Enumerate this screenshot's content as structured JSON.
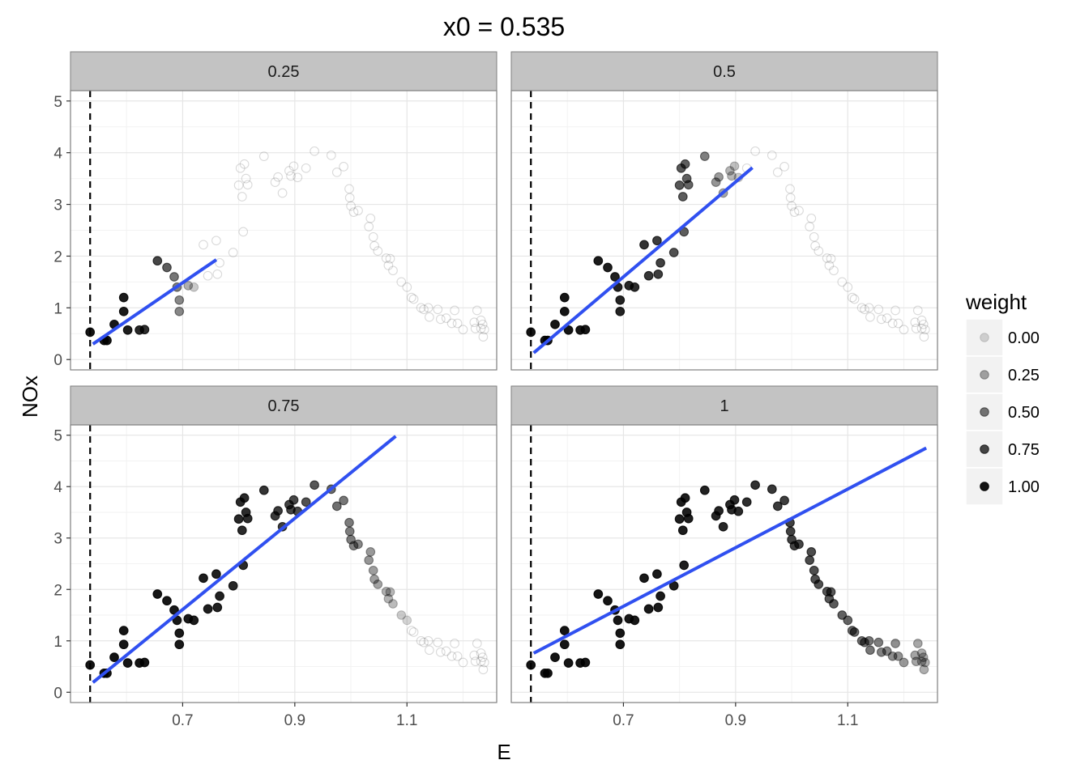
{
  "chart_data": {
    "type": "scatter",
    "title": "x0 =  0.535",
    "xlabel": "E",
    "ylabel": "NOx",
    "xlim": [
      0.5,
      1.26
    ],
    "ylim": [
      -0.2,
      5.2
    ],
    "x_ticks": [
      "0.7",
      "0.9",
      "1.1"
    ],
    "x_tick_values": [
      0.7,
      0.9,
      1.1
    ],
    "y_ticks": [
      "0",
      "1",
      "2",
      "3",
      "4",
      "5"
    ],
    "y_tick_values": [
      0,
      1,
      2,
      3,
      4,
      5
    ],
    "vline_x": 0.535,
    "grid": true,
    "legend": {
      "title": "weight",
      "position": "right",
      "entries": [
        "0.00",
        "0.25",
        "0.50",
        "0.75",
        "1.00"
      ],
      "alphas": [
        0.15,
        0.34,
        0.53,
        0.72,
        0.92
      ]
    },
    "point_color": "#000000",
    "fit_color": "#3050F0",
    "points": [
      [
        0.535,
        0.53
      ],
      [
        0.56,
        0.37
      ],
      [
        0.565,
        0.37
      ],
      [
        0.578,
        0.68
      ],
      [
        0.595,
        1.2
      ],
      [
        0.595,
        0.93
      ],
      [
        0.602,
        0.57
      ],
      [
        0.623,
        0.57
      ],
      [
        0.632,
        0.58
      ],
      [
        0.655,
        1.91
      ],
      [
        0.672,
        1.78
      ],
      [
        0.685,
        1.6
      ],
      [
        0.69,
        1.4
      ],
      [
        0.694,
        1.15
      ],
      [
        0.694,
        0.93
      ],
      [
        0.71,
        1.43
      ],
      [
        0.72,
        1.4
      ],
      [
        0.737,
        2.22
      ],
      [
        0.745,
        1.62
      ],
      [
        0.76,
        2.3
      ],
      [
        0.762,
        1.65
      ],
      [
        0.766,
        1.87
      ],
      [
        0.79,
        2.07
      ],
      [
        0.8,
        3.37
      ],
      [
        0.803,
        3.7
      ],
      [
        0.806,
        3.15
      ],
      [
        0.808,
        2.47
      ],
      [
        0.81,
        3.78
      ],
      [
        0.813,
        3.5
      ],
      [
        0.816,
        3.38
      ],
      [
        0.845,
        3.93
      ],
      [
        0.865,
        3.43
      ],
      [
        0.87,
        3.53
      ],
      [
        0.878,
        3.22
      ],
      [
        0.89,
        3.65
      ],
      [
        0.893,
        3.55
      ],
      [
        0.898,
        3.74
      ],
      [
        0.905,
        3.52
      ],
      [
        0.92,
        3.7
      ],
      [
        0.935,
        4.03
      ],
      [
        0.965,
        3.95
      ],
      [
        0.975,
        3.62
      ],
      [
        0.987,
        3.73
      ],
      [
        0.997,
        3.3
      ],
      [
        0.998,
        3.13
      ],
      [
        1.0,
        2.97
      ],
      [
        1.005,
        2.85
      ],
      [
        1.013,
        2.88
      ],
      [
        1.032,
        2.57
      ],
      [
        1.035,
        2.73
      ],
      [
        1.04,
        2.37
      ],
      [
        1.042,
        2.2
      ],
      [
        1.048,
        2.1
      ],
      [
        1.063,
        1.96
      ],
      [
        1.067,
        1.82
      ],
      [
        1.07,
        1.95
      ],
      [
        1.075,
        1.72
      ],
      [
        1.09,
        1.5
      ],
      [
        1.1,
        1.4
      ],
      [
        1.108,
        1.2
      ],
      [
        1.112,
        1.17
      ],
      [
        1.125,
        1.0
      ],
      [
        1.13,
        0.97
      ],
      [
        1.138,
        1.0
      ],
      [
        1.14,
        0.82
      ],
      [
        1.155,
        0.97
      ],
      [
        1.16,
        0.78
      ],
      [
        1.17,
        0.8
      ],
      [
        1.18,
        0.7
      ],
      [
        1.185,
        0.95
      ],
      [
        1.19,
        0.7
      ],
      [
        1.2,
        0.58
      ],
      [
        1.22,
        0.72
      ],
      [
        1.222,
        0.6
      ],
      [
        1.225,
        0.95
      ],
      [
        1.232,
        0.76
      ],
      [
        1.232,
        0.6
      ],
      [
        1.235,
        0.68
      ],
      [
        1.236,
        0.44
      ],
      [
        1.238,
        0.58
      ]
    ],
    "panels": [
      {
        "label": "0.25",
        "span": 0.25,
        "fit": {
          "x": [
            0.54,
            0.76
          ],
          "y": [
            0.3,
            1.93
          ]
        }
      },
      {
        "label": "0.5",
        "span": 0.5,
        "fit": {
          "x": [
            0.54,
            0.93
          ],
          "y": [
            0.13,
            3.71
          ]
        }
      },
      {
        "label": "0.75",
        "span": 0.75,
        "fit": {
          "x": [
            0.54,
            1.08
          ],
          "y": [
            0.19,
            4.98
          ]
        }
      },
      {
        "label": "1",
        "span": 1.0,
        "fit": {
          "x": [
            0.54,
            1.24
          ],
          "y": [
            0.76,
            4.75
          ]
        }
      }
    ]
  }
}
